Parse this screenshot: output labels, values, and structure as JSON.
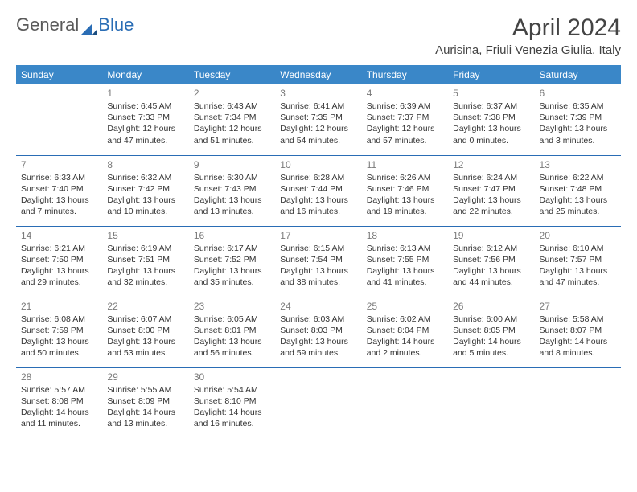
{
  "brand": {
    "part1": "General",
    "part2": "Blue"
  },
  "title": "April 2024",
  "location": "Aurisina, Friuli Venezia Giulia, Italy",
  "table": {
    "header_bg": "#3a87c8",
    "header_fg": "#ffffff",
    "row_border": "#2a6db5",
    "daynum_color": "#7a7a7a",
    "text_color": "#333333",
    "columns": [
      "Sunday",
      "Monday",
      "Tuesday",
      "Wednesday",
      "Thursday",
      "Friday",
      "Saturday"
    ],
    "weeks": [
      [
        {
          "n": "",
          "sr": "",
          "ss": "",
          "dl1": "",
          "dl2": "",
          "empty": true
        },
        {
          "n": "1",
          "sr": "Sunrise: 6:45 AM",
          "ss": "Sunset: 7:33 PM",
          "dl1": "Daylight: 12 hours",
          "dl2": "and 47 minutes."
        },
        {
          "n": "2",
          "sr": "Sunrise: 6:43 AM",
          "ss": "Sunset: 7:34 PM",
          "dl1": "Daylight: 12 hours",
          "dl2": "and 51 minutes."
        },
        {
          "n": "3",
          "sr": "Sunrise: 6:41 AM",
          "ss": "Sunset: 7:35 PM",
          "dl1": "Daylight: 12 hours",
          "dl2": "and 54 minutes."
        },
        {
          "n": "4",
          "sr": "Sunrise: 6:39 AM",
          "ss": "Sunset: 7:37 PM",
          "dl1": "Daylight: 12 hours",
          "dl2": "and 57 minutes."
        },
        {
          "n": "5",
          "sr": "Sunrise: 6:37 AM",
          "ss": "Sunset: 7:38 PM",
          "dl1": "Daylight: 13 hours",
          "dl2": "and 0 minutes."
        },
        {
          "n": "6",
          "sr": "Sunrise: 6:35 AM",
          "ss": "Sunset: 7:39 PM",
          "dl1": "Daylight: 13 hours",
          "dl2": "and 3 minutes."
        }
      ],
      [
        {
          "n": "7",
          "sr": "Sunrise: 6:33 AM",
          "ss": "Sunset: 7:40 PM",
          "dl1": "Daylight: 13 hours",
          "dl2": "and 7 minutes."
        },
        {
          "n": "8",
          "sr": "Sunrise: 6:32 AM",
          "ss": "Sunset: 7:42 PM",
          "dl1": "Daylight: 13 hours",
          "dl2": "and 10 minutes."
        },
        {
          "n": "9",
          "sr": "Sunrise: 6:30 AM",
          "ss": "Sunset: 7:43 PM",
          "dl1": "Daylight: 13 hours",
          "dl2": "and 13 minutes."
        },
        {
          "n": "10",
          "sr": "Sunrise: 6:28 AM",
          "ss": "Sunset: 7:44 PM",
          "dl1": "Daylight: 13 hours",
          "dl2": "and 16 minutes."
        },
        {
          "n": "11",
          "sr": "Sunrise: 6:26 AM",
          "ss": "Sunset: 7:46 PM",
          "dl1": "Daylight: 13 hours",
          "dl2": "and 19 minutes."
        },
        {
          "n": "12",
          "sr": "Sunrise: 6:24 AM",
          "ss": "Sunset: 7:47 PM",
          "dl1": "Daylight: 13 hours",
          "dl2": "and 22 minutes."
        },
        {
          "n": "13",
          "sr": "Sunrise: 6:22 AM",
          "ss": "Sunset: 7:48 PM",
          "dl1": "Daylight: 13 hours",
          "dl2": "and 25 minutes."
        }
      ],
      [
        {
          "n": "14",
          "sr": "Sunrise: 6:21 AM",
          "ss": "Sunset: 7:50 PM",
          "dl1": "Daylight: 13 hours",
          "dl2": "and 29 minutes."
        },
        {
          "n": "15",
          "sr": "Sunrise: 6:19 AM",
          "ss": "Sunset: 7:51 PM",
          "dl1": "Daylight: 13 hours",
          "dl2": "and 32 minutes."
        },
        {
          "n": "16",
          "sr": "Sunrise: 6:17 AM",
          "ss": "Sunset: 7:52 PM",
          "dl1": "Daylight: 13 hours",
          "dl2": "and 35 minutes."
        },
        {
          "n": "17",
          "sr": "Sunrise: 6:15 AM",
          "ss": "Sunset: 7:54 PM",
          "dl1": "Daylight: 13 hours",
          "dl2": "and 38 minutes."
        },
        {
          "n": "18",
          "sr": "Sunrise: 6:13 AM",
          "ss": "Sunset: 7:55 PM",
          "dl1": "Daylight: 13 hours",
          "dl2": "and 41 minutes."
        },
        {
          "n": "19",
          "sr": "Sunrise: 6:12 AM",
          "ss": "Sunset: 7:56 PM",
          "dl1": "Daylight: 13 hours",
          "dl2": "and 44 minutes."
        },
        {
          "n": "20",
          "sr": "Sunrise: 6:10 AM",
          "ss": "Sunset: 7:57 PM",
          "dl1": "Daylight: 13 hours",
          "dl2": "and 47 minutes."
        }
      ],
      [
        {
          "n": "21",
          "sr": "Sunrise: 6:08 AM",
          "ss": "Sunset: 7:59 PM",
          "dl1": "Daylight: 13 hours",
          "dl2": "and 50 minutes."
        },
        {
          "n": "22",
          "sr": "Sunrise: 6:07 AM",
          "ss": "Sunset: 8:00 PM",
          "dl1": "Daylight: 13 hours",
          "dl2": "and 53 minutes."
        },
        {
          "n": "23",
          "sr": "Sunrise: 6:05 AM",
          "ss": "Sunset: 8:01 PM",
          "dl1": "Daylight: 13 hours",
          "dl2": "and 56 minutes."
        },
        {
          "n": "24",
          "sr": "Sunrise: 6:03 AM",
          "ss": "Sunset: 8:03 PM",
          "dl1": "Daylight: 13 hours",
          "dl2": "and 59 minutes."
        },
        {
          "n": "25",
          "sr": "Sunrise: 6:02 AM",
          "ss": "Sunset: 8:04 PM",
          "dl1": "Daylight: 14 hours",
          "dl2": "and 2 minutes."
        },
        {
          "n": "26",
          "sr": "Sunrise: 6:00 AM",
          "ss": "Sunset: 8:05 PM",
          "dl1": "Daylight: 14 hours",
          "dl2": "and 5 minutes."
        },
        {
          "n": "27",
          "sr": "Sunrise: 5:58 AM",
          "ss": "Sunset: 8:07 PM",
          "dl1": "Daylight: 14 hours",
          "dl2": "and 8 minutes."
        }
      ],
      [
        {
          "n": "28",
          "sr": "Sunrise: 5:57 AM",
          "ss": "Sunset: 8:08 PM",
          "dl1": "Daylight: 14 hours",
          "dl2": "and 11 minutes."
        },
        {
          "n": "29",
          "sr": "Sunrise: 5:55 AM",
          "ss": "Sunset: 8:09 PM",
          "dl1": "Daylight: 14 hours",
          "dl2": "and 13 minutes."
        },
        {
          "n": "30",
          "sr": "Sunrise: 5:54 AM",
          "ss": "Sunset: 8:10 PM",
          "dl1": "Daylight: 14 hours",
          "dl2": "and 16 minutes."
        },
        {
          "n": "",
          "sr": "",
          "ss": "",
          "dl1": "",
          "dl2": "",
          "empty": true
        },
        {
          "n": "",
          "sr": "",
          "ss": "",
          "dl1": "",
          "dl2": "",
          "empty": true
        },
        {
          "n": "",
          "sr": "",
          "ss": "",
          "dl1": "",
          "dl2": "",
          "empty": true
        },
        {
          "n": "",
          "sr": "",
          "ss": "",
          "dl1": "",
          "dl2": "",
          "empty": true
        }
      ]
    ]
  }
}
